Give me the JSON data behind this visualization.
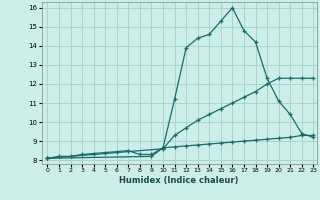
{
  "title": "",
  "xlabel": "Humidex (Indice chaleur)",
  "ylabel": "",
  "bg_color": "#cceee8",
  "grid_color": "#aad4cc",
  "line_color": "#1a6b6b",
  "xlim": [
    -0.5,
    23.3
  ],
  "ylim": [
    7.8,
    16.3
  ],
  "xticks": [
    0,
    1,
    2,
    3,
    4,
    5,
    6,
    7,
    8,
    9,
    10,
    11,
    12,
    13,
    14,
    15,
    16,
    17,
    18,
    19,
    20,
    21,
    22,
    23
  ],
  "yticks": [
    8,
    9,
    10,
    11,
    12,
    13,
    14,
    15,
    16
  ],
  "line1_x": [
    0,
    1,
    2,
    3,
    4,
    5,
    6,
    7,
    8,
    9,
    10,
    11,
    12,
    13,
    14,
    15,
    16,
    17,
    18,
    19,
    20,
    21,
    22,
    23
  ],
  "line1_y": [
    8.1,
    8.2,
    8.2,
    8.3,
    8.35,
    8.4,
    8.45,
    8.5,
    8.3,
    8.3,
    8.65,
    8.7,
    8.75,
    8.8,
    8.85,
    8.9,
    8.95,
    9.0,
    9.05,
    9.1,
    9.15,
    9.2,
    9.3,
    9.3
  ],
  "line2_x": [
    0,
    10,
    11,
    12,
    13,
    14,
    15,
    16,
    17,
    18,
    19,
    20,
    21,
    22,
    23
  ],
  "line2_y": [
    8.1,
    8.6,
    9.3,
    9.7,
    10.1,
    10.4,
    10.7,
    11.0,
    11.3,
    11.6,
    12.0,
    12.3,
    12.3,
    12.3,
    12.3
  ],
  "line3_x": [
    0,
    9,
    10,
    11,
    12,
    13,
    14,
    15,
    16,
    17,
    18,
    19,
    20,
    21,
    22,
    23
  ],
  "line3_y": [
    8.1,
    8.2,
    8.65,
    11.2,
    13.9,
    14.4,
    14.6,
    15.3,
    16.0,
    14.8,
    14.2,
    12.3,
    11.1,
    10.4,
    9.4,
    9.2
  ]
}
